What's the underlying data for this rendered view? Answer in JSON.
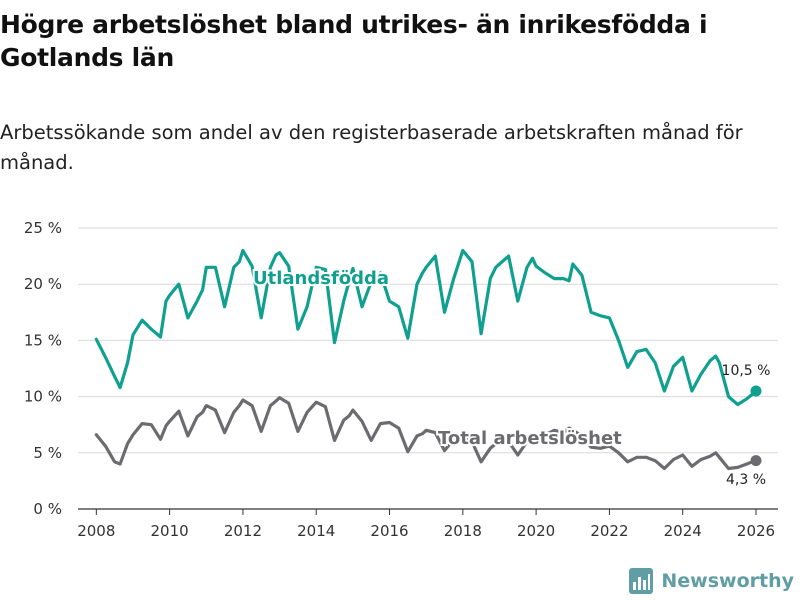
{
  "header": {
    "title": "Högre arbetslöshet bland utrikes- än inrikesfödda i Gotlands län",
    "subtitle": "Arbetssökande som andel av den registerbaserade arbetskraften månad för månad."
  },
  "brand": {
    "name": "Newsworthy",
    "icon": "newsworthy-logo-icon"
  },
  "colors": {
    "foreign_born": "#0fa08f",
    "total": "#6b6b70",
    "grid": "#d9d9d9",
    "axis": "#333333"
  },
  "chart_data": {
    "type": "line",
    "title": "Högre arbetslöshet bland utrikes- än inrikesfödda i Gotlands län",
    "subtitle": "Arbetssökande som andel av den registerbaserade arbetskraften månad för månad.",
    "xlabel": "",
    "ylabel": "",
    "xlim": [
      2007.5,
      2026.6
    ],
    "ylim": [
      0,
      25
    ],
    "x_ticks": [
      2008,
      2010,
      2012,
      2014,
      2016,
      2018,
      2020,
      2022,
      2024,
      2026
    ],
    "x_tick_labels": [
      "2008",
      "2010",
      "2012",
      "2014",
      "2016",
      "2018",
      "2020",
      "2022",
      "2024",
      "2026"
    ],
    "y_ticks": [
      0,
      5,
      10,
      15,
      20,
      25
    ],
    "y_tick_labels": [
      "0 %",
      "5 %",
      "10 %",
      "15 %",
      "20 %",
      "25 %"
    ],
    "grid": true,
    "legend": "inline",
    "series": [
      {
        "name": "Utlandsfödda",
        "color": "#0fa08f",
        "end_label": "10,5 %",
        "x": [
          2008.0,
          2008.25,
          2008.5,
          2008.65,
          2008.85,
          2009.0,
          2009.25,
          2009.5,
          2009.75,
          2009.9,
          2010.0,
          2010.25,
          2010.5,
          2010.75,
          2010.9,
          2011.0,
          2011.25,
          2011.5,
          2011.75,
          2011.9,
          2012.0,
          2012.25,
          2012.5,
          2012.75,
          2012.9,
          2013.0,
          2013.25,
          2013.5,
          2013.75,
          2014.0,
          2014.25,
          2014.5,
          2014.75,
          2014.9,
          2015.0,
          2015.25,
          2015.5,
          2015.75,
          2016.0,
          2016.25,
          2016.5,
          2016.75,
          2016.9,
          2017.0,
          2017.25,
          2017.5,
          2017.75,
          2018.0,
          2018.25,
          2018.5,
          2018.75,
          2018.9,
          2019.0,
          2019.25,
          2019.5,
          2019.75,
          2019.9,
          2020.0,
          2020.25,
          2020.5,
          2020.75,
          2020.9,
          2021.0,
          2021.25,
          2021.5,
          2021.75,
          2022.0,
          2022.25,
          2022.5,
          2022.75,
          2023.0,
          2023.25,
          2023.5,
          2023.75,
          2024.0,
          2024.25,
          2024.5,
          2024.75,
          2024.9,
          2025.0,
          2025.25,
          2025.5,
          2025.75,
          2025.9,
          2026.0
        ],
        "y": [
          15.1,
          13.5,
          11.8,
          10.8,
          13.0,
          15.5,
          16.8,
          16.0,
          15.3,
          18.5,
          19.0,
          20.0,
          17.0,
          18.5,
          19.5,
          21.5,
          21.5,
          18.0,
          21.5,
          22.0,
          23.0,
          21.6,
          17.0,
          21.5,
          22.6,
          22.8,
          21.6,
          16.0,
          18.0,
          21.5,
          21.3,
          14.8,
          18.5,
          20.3,
          21.4,
          18.0,
          20.2,
          21.0,
          18.5,
          18.0,
          15.2,
          20.0,
          21.0,
          21.5,
          22.5,
          17.5,
          20.5,
          23.0,
          22.0,
          15.6,
          20.5,
          21.5,
          21.8,
          22.5,
          18.5,
          21.5,
          22.3,
          21.6,
          21.0,
          20.5,
          20.5,
          20.3,
          21.8,
          20.8,
          17.5,
          17.2,
          17.0,
          15.0,
          12.6,
          14.0,
          14.2,
          13.0,
          10.5,
          12.7,
          13.5,
          10.5,
          12.0,
          13.2,
          13.6,
          13.0,
          10.0,
          9.3,
          9.8,
          10.2,
          10.5
        ]
      },
      {
        "name": "Total arbetslöshet",
        "color": "#6b6b70",
        "end_label": "4,3 %",
        "x": [
          2008.0,
          2008.25,
          2008.5,
          2008.65,
          2008.85,
          2009.0,
          2009.25,
          2009.5,
          2009.75,
          2009.9,
          2010.0,
          2010.25,
          2010.5,
          2010.75,
          2010.9,
          2011.0,
          2011.25,
          2011.5,
          2011.75,
          2011.9,
          2012.0,
          2012.25,
          2012.5,
          2012.75,
          2012.9,
          2013.0,
          2013.25,
          2013.5,
          2013.75,
          2014.0,
          2014.25,
          2014.5,
          2014.75,
          2014.9,
          2015.0,
          2015.25,
          2015.5,
          2015.75,
          2016.0,
          2016.25,
          2016.5,
          2016.75,
          2016.9,
          2017.0,
          2017.25,
          2017.5,
          2017.75,
          2018.0,
          2018.25,
          2018.5,
          2018.75,
          2018.9,
          2019.0,
          2019.25,
          2019.5,
          2019.75,
          2019.9,
          2020.0,
          2020.25,
          2020.5,
          2020.75,
          2020.9,
          2021.0,
          2021.25,
          2021.5,
          2021.75,
          2022.0,
          2022.25,
          2022.5,
          2022.75,
          2023.0,
          2023.25,
          2023.5,
          2023.75,
          2024.0,
          2024.25,
          2024.5,
          2024.75,
          2024.9,
          2025.0,
          2025.25,
          2025.5,
          2025.75,
          2025.9,
          2026.0
        ],
        "y": [
          6.6,
          5.6,
          4.2,
          4.0,
          5.8,
          6.6,
          7.6,
          7.5,
          6.2,
          7.4,
          7.8,
          8.7,
          6.5,
          8.2,
          8.6,
          9.2,
          8.8,
          6.8,
          8.6,
          9.2,
          9.7,
          9.2,
          6.9,
          9.2,
          9.6,
          9.9,
          9.4,
          6.9,
          8.6,
          9.5,
          9.1,
          6.1,
          7.9,
          8.3,
          8.8,
          7.8,
          6.1,
          7.6,
          7.7,
          7.2,
          5.1,
          6.5,
          6.7,
          7.0,
          6.8,
          5.2,
          6.2,
          6.5,
          6.0,
          4.2,
          5.4,
          5.8,
          6.2,
          6.0,
          4.8,
          6.0,
          6.3,
          6.5,
          6.6,
          7.0,
          6.8,
          7.2,
          7.0,
          6.5,
          5.5,
          5.4,
          5.6,
          5.0,
          4.2,
          4.6,
          4.6,
          4.3,
          3.6,
          4.4,
          4.8,
          3.8,
          4.4,
          4.7,
          5.0,
          4.6,
          3.6,
          3.7,
          4.0,
          4.2,
          4.3
        ]
      }
    ]
  }
}
